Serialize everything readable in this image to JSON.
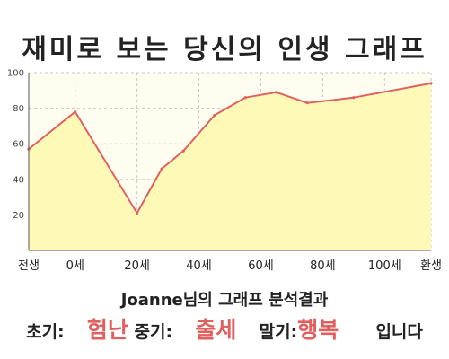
{
  "chart_data": {
    "type": "area",
    "title": "재미로 보는 당신의 인생 그래프",
    "x_labels": [
      "전생",
      "0세",
      "20세",
      "40세",
      "60세",
      "80세",
      "100세",
      "환생"
    ],
    "x_label_positions": [
      -15,
      0,
      20,
      40,
      60,
      80,
      100,
      115
    ],
    "xlim": [
      -15,
      115
    ],
    "ylim": [
      0,
      100
    ],
    "y_ticks": [
      20,
      40,
      60,
      80,
      100
    ],
    "series": [
      {
        "x": [
          -15,
          0,
          20,
          28,
          35,
          45,
          55,
          65,
          75,
          90,
          115
        ],
        "values": [
          57,
          78,
          21,
          46,
          56,
          76,
          86,
          89,
          83,
          86,
          94
        ]
      }
    ],
    "grid": true,
    "line_color": "#e06060",
    "fill_color": "#fff9b8"
  },
  "summary": {
    "name": "Joanne",
    "suffix": "님의 그래프 분석결과",
    "early_label": "초기:",
    "early_value": "험난",
    "middle_label": "중기:",
    "middle_value": "출세",
    "late_label": "말기:",
    "late_value": "행복",
    "ending": "입니다",
    "accent_color": "#e06060"
  }
}
